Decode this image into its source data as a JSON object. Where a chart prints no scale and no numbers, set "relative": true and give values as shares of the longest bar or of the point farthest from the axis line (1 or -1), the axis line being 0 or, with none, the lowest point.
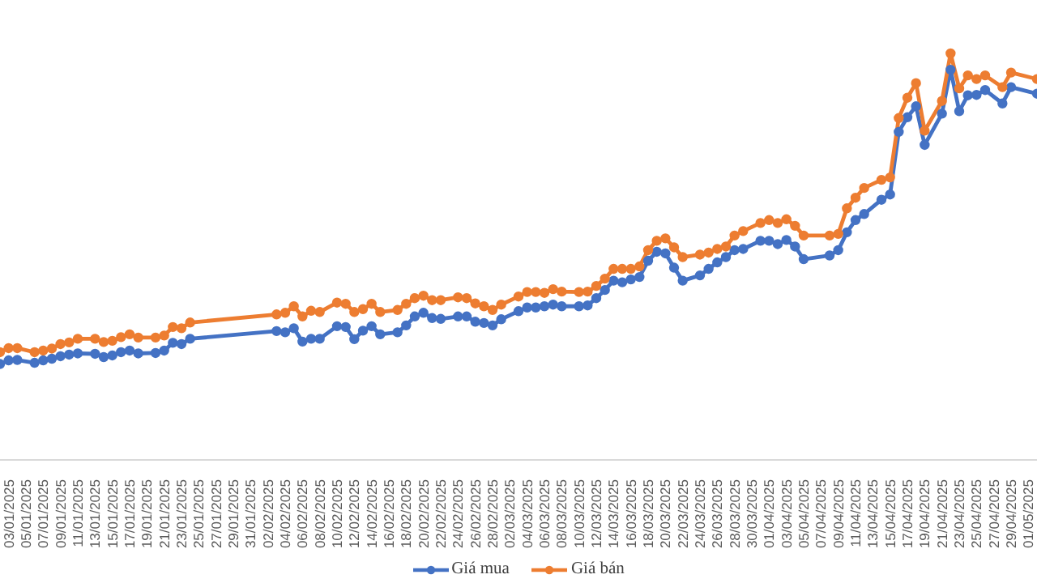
{
  "chart_data": {
    "type": "line",
    "relative": true,
    "marker": "circle",
    "line_style": "solid",
    "legend": "bottom",
    "x": [
      "2025-01-02",
      "2025-01-03",
      "2025-01-04",
      "2025-01-06",
      "2025-01-07",
      "2025-01-08",
      "2025-01-09",
      "2025-01-10",
      "2025-01-11",
      "2025-01-13",
      "2025-01-14",
      "2025-01-15",
      "2025-01-16",
      "2025-01-17",
      "2025-01-18",
      "2025-01-20",
      "2025-01-21",
      "2025-01-22",
      "2025-01-23",
      "2025-01-24",
      "2025-02-03",
      "2025-02-04",
      "2025-02-05",
      "2025-02-06",
      "2025-02-07",
      "2025-02-08",
      "2025-02-10",
      "2025-02-11",
      "2025-02-12",
      "2025-02-13",
      "2025-02-14",
      "2025-02-15",
      "2025-02-17",
      "2025-02-18",
      "2025-02-19",
      "2025-02-20",
      "2025-02-21",
      "2025-02-22",
      "2025-02-24",
      "2025-02-25",
      "2025-02-26",
      "2025-02-27",
      "2025-02-28",
      "2025-03-01",
      "2025-03-03",
      "2025-03-04",
      "2025-03-05",
      "2025-03-06",
      "2025-03-07",
      "2025-03-08",
      "2025-03-10",
      "2025-03-11",
      "2025-03-12",
      "2025-03-13",
      "2025-03-14",
      "2025-03-15",
      "2025-03-16",
      "2025-03-17",
      "2025-03-18",
      "2025-03-19",
      "2025-03-20",
      "2025-03-21",
      "2025-03-22",
      "2025-03-24",
      "2025-03-25",
      "2025-03-26",
      "2025-03-27",
      "2025-03-28",
      "2025-03-29",
      "2025-03-31",
      "2025-04-01",
      "2025-04-02",
      "2025-04-03",
      "2025-04-04",
      "2025-04-05",
      "2025-04-08",
      "2025-04-09",
      "2025-04-10",
      "2025-04-11",
      "2025-04-12",
      "2025-04-14",
      "2025-04-15",
      "2025-04-16",
      "2025-04-17",
      "2025-04-18",
      "2025-04-19",
      "2025-04-21",
      "2025-04-22",
      "2025-04-23",
      "2025-04-24",
      "2025-04-25",
      "2025-04-26",
      "2025-04-28",
      "2025-04-29",
      "2025-05-02"
    ],
    "xlim": [
      "2025-01-02",
      "2025-05-02"
    ],
    "xticks": [
      {
        "value": "2025-01-03",
        "label": "03/01/2025"
      },
      {
        "value": "2025-01-05",
        "label": "05/01/2025"
      },
      {
        "value": "2025-01-07",
        "label": "07/01/2025"
      },
      {
        "value": "2025-01-09",
        "label": "09/01/2025"
      },
      {
        "value": "2025-01-11",
        "label": "11/01/2025"
      },
      {
        "value": "2025-01-13",
        "label": "13/01/2025"
      },
      {
        "value": "2025-01-15",
        "label": "15/01/2025"
      },
      {
        "value": "2025-01-17",
        "label": "17/01/2025"
      },
      {
        "value": "2025-01-19",
        "label": "19/01/2025"
      },
      {
        "value": "2025-01-21",
        "label": "21/01/2025"
      },
      {
        "value": "2025-01-23",
        "label": "23/01/2025"
      },
      {
        "value": "2025-01-25",
        "label": "25/01/2025"
      },
      {
        "value": "2025-01-27",
        "label": "27/01/2025"
      },
      {
        "value": "2025-01-29",
        "label": "29/01/2025"
      },
      {
        "value": "2025-01-31",
        "label": "31/01/2025"
      },
      {
        "value": "2025-02-02",
        "label": "02/02/2025"
      },
      {
        "value": "2025-02-04",
        "label": "04/02/2025"
      },
      {
        "value": "2025-02-06",
        "label": "06/02/2025"
      },
      {
        "value": "2025-02-08",
        "label": "08/02/2025"
      },
      {
        "value": "2025-02-10",
        "label": "10/02/2025"
      },
      {
        "value": "2025-02-12",
        "label": "12/02/2025"
      },
      {
        "value": "2025-02-14",
        "label": "14/02/2025"
      },
      {
        "value": "2025-02-16",
        "label": "16/02/2025"
      },
      {
        "value": "2025-02-18",
        "label": "18/02/2025"
      },
      {
        "value": "2025-02-20",
        "label": "20/02/2025"
      },
      {
        "value": "2025-02-22",
        "label": "22/02/2025"
      },
      {
        "value": "2025-02-24",
        "label": "24/02/2025"
      },
      {
        "value": "2025-02-26",
        "label": "26/02/2025"
      },
      {
        "value": "2025-02-28",
        "label": "28/02/2025"
      },
      {
        "value": "2025-03-02",
        "label": "02/03/2025"
      },
      {
        "value": "2025-03-04",
        "label": "04/03/2025"
      },
      {
        "value": "2025-03-06",
        "label": "06/03/2025"
      },
      {
        "value": "2025-03-08",
        "label": "08/03/2025"
      },
      {
        "value": "2025-03-10",
        "label": "10/03/2025"
      },
      {
        "value": "2025-03-12",
        "label": "12/03/2025"
      },
      {
        "value": "2025-03-14",
        "label": "14/03/2025"
      },
      {
        "value": "2025-03-16",
        "label": "16/03/2025"
      },
      {
        "value": "2025-03-18",
        "label": "18/03/2025"
      },
      {
        "value": "2025-03-20",
        "label": "20/03/2025"
      },
      {
        "value": "2025-03-22",
        "label": "22/03/2025"
      },
      {
        "value": "2025-03-24",
        "label": "24/03/2025"
      },
      {
        "value": "2025-03-26",
        "label": "26/03/2025"
      },
      {
        "value": "2025-03-28",
        "label": "28/03/2025"
      },
      {
        "value": "2025-03-30",
        "label": "30/03/2025"
      },
      {
        "value": "2025-04-01",
        "label": "01/04/2025"
      },
      {
        "value": "2025-04-03",
        "label": "03/04/2025"
      },
      {
        "value": "2025-04-05",
        "label": "05/04/2025"
      },
      {
        "value": "2025-04-07",
        "label": "07/04/2025"
      },
      {
        "value": "2025-04-09",
        "label": "09/04/2025"
      },
      {
        "value": "2025-04-11",
        "label": "11/04/2025"
      },
      {
        "value": "2025-04-13",
        "label": "13/04/2025"
      },
      {
        "value": "2025-04-15",
        "label": "15/04/2025"
      },
      {
        "value": "2025-04-17",
        "label": "17/04/2025"
      },
      {
        "value": "2025-04-19",
        "label": "19/04/2025"
      },
      {
        "value": "2025-04-21",
        "label": "21/04/2025"
      },
      {
        "value": "2025-04-23",
        "label": "23/04/2025"
      },
      {
        "value": "2025-04-25",
        "label": "25/04/2025"
      },
      {
        "value": "2025-04-27",
        "label": "27/04/2025"
      },
      {
        "value": "2025-04-29",
        "label": "29/04/2025"
      },
      {
        "value": "2025-05-01",
        "label": "01/05/2025"
      }
    ],
    "series": [
      {
        "name": "Giá mua",
        "color": "#4472c4",
        "values": [
          0.236,
          0.245,
          0.246,
          0.239,
          0.245,
          0.249,
          0.255,
          0.259,
          0.262,
          0.261,
          0.253,
          0.257,
          0.265,
          0.269,
          0.262,
          0.263,
          0.269,
          0.288,
          0.285,
          0.298,
          0.317,
          0.314,
          0.324,
          0.291,
          0.298,
          0.298,
          0.329,
          0.327,
          0.297,
          0.318,
          0.329,
          0.309,
          0.314,
          0.331,
          0.353,
          0.362,
          0.349,
          0.347,
          0.353,
          0.353,
          0.34,
          0.337,
          0.331,
          0.346,
          0.366,
          0.375,
          0.375,
          0.378,
          0.382,
          0.378,
          0.378,
          0.38,
          0.398,
          0.418,
          0.441,
          0.437,
          0.444,
          0.45,
          0.49,
          0.512,
          0.508,
          0.473,
          0.441,
          0.454,
          0.47,
          0.486,
          0.499,
          0.516,
          0.519,
          0.539,
          0.539,
          0.531,
          0.541,
          0.525,
          0.494,
          0.503,
          0.516,
          0.56,
          0.59,
          0.605,
          0.64,
          0.653,
          0.807,
          0.843,
          0.87,
          0.775,
          0.852,
          0.96,
          0.858,
          0.897,
          0.898,
          0.91,
          0.877,
          0.917,
          0.901
        ]
      },
      {
        "name": "Giá bán",
        "color": "#ed7d31",
        "values": [
          0.265,
          0.275,
          0.275,
          0.265,
          0.269,
          0.274,
          0.285,
          0.289,
          0.298,
          0.298,
          0.29,
          0.293,
          0.302,
          0.309,
          0.301,
          0.301,
          0.306,
          0.327,
          0.324,
          0.338,
          0.358,
          0.362,
          0.378,
          0.353,
          0.367,
          0.364,
          0.387,
          0.384,
          0.364,
          0.371,
          0.384,
          0.364,
          0.369,
          0.384,
          0.398,
          0.404,
          0.393,
          0.393,
          0.4,
          0.398,
          0.385,
          0.378,
          0.369,
          0.382,
          0.402,
          0.413,
          0.413,
          0.411,
          0.42,
          0.414,
          0.413,
          0.414,
          0.428,
          0.446,
          0.47,
          0.47,
          0.47,
          0.476,
          0.516,
          0.539,
          0.545,
          0.523,
          0.499,
          0.505,
          0.51,
          0.519,
          0.525,
          0.552,
          0.563,
          0.583,
          0.59,
          0.583,
          0.592,
          0.576,
          0.552,
          0.552,
          0.556,
          0.619,
          0.645,
          0.669,
          0.689,
          0.695,
          0.841,
          0.891,
          0.927,
          0.81,
          0.883,
          1,
          0.914,
          0.946,
          0.937,
          0.946,
          0.917,
          0.953,
          0.937
        ]
      }
    ]
  }
}
